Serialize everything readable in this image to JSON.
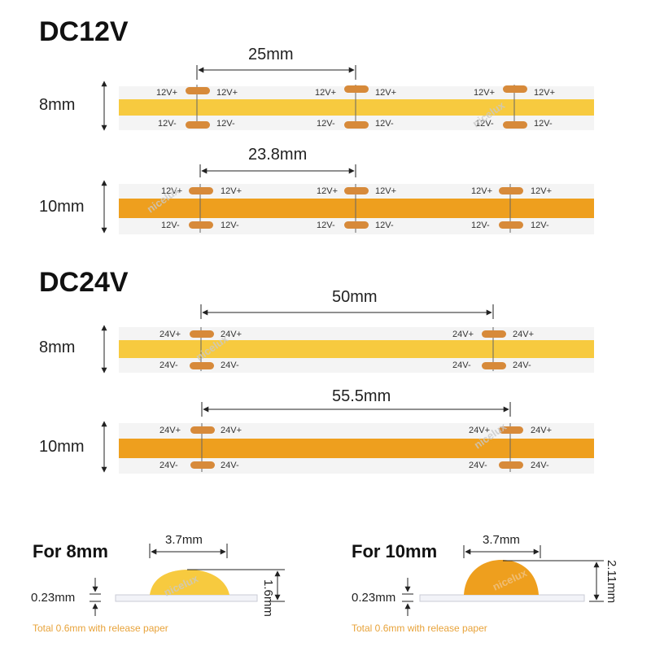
{
  "sections": {
    "dc12": "DC12V",
    "dc24": "DC24V"
  },
  "strips": {
    "s1": {
      "width": "8mm",
      "spacing": "25mm",
      "plus": "12V+",
      "minus": "12V-"
    },
    "s2": {
      "width": "10mm",
      "spacing": "23.8mm",
      "plus": "12V+",
      "minus": "12V-"
    },
    "s3": {
      "width": "8mm",
      "spacing": "50mm",
      "plus": "24V+",
      "minus": "24V-"
    },
    "s4": {
      "width": "10mm",
      "spacing": "55.5mm",
      "plus": "24V+",
      "minus": "24V-"
    }
  },
  "watermark": "nicelux",
  "colors": {
    "warm_light": "#f7ca3f",
    "amber": "#ee9f1e",
    "pad": "#d78a3a",
    "note": "#e8a33a",
    "strip_bg": "#f4f4f4"
  },
  "cross": {
    "c8": {
      "title": "For 8mm",
      "width": "3.7mm",
      "height": "1.6mm",
      "base": "0.23mm",
      "note": "Total 0.6mm with release paper"
    },
    "c10": {
      "title": "For 10mm",
      "width": "3.7mm",
      "height": "2.11mm",
      "base": "0.23mm",
      "note": "Total 0.6mm with release paper"
    }
  }
}
